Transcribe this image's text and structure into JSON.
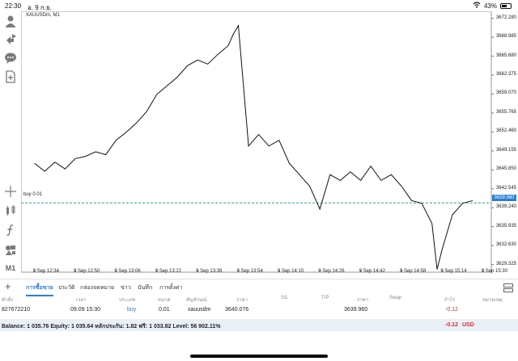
{
  "status": {
    "time": "22:30",
    "date": "อ. 9 ก.ย.",
    "battery": "43%"
  },
  "chart": {
    "symbol": "XAUUSDm, M1",
    "position_label": "buy 0.01",
    "current_price_tag": "3639.960",
    "colors": {
      "line": "#111111",
      "position_line": "#2e9e8f",
      "price_tag": "#2b7ed6"
    },
    "y_ticks": [
      "3672.280",
      "3668.985",
      "3665.680",
      "3662.375",
      "3659.070",
      "3655.765",
      "3652.460",
      "3649.155",
      "3645.850",
      "3642.545",
      "3639.240",
      "3635.935",
      "3632.630",
      "3629.325"
    ],
    "x_ticks": [
      "9 Sep 12:34",
      "9 Sep 12:50",
      "9 Sep 13:06",
      "9 Sep 13:22",
      "9 Sep 13:38",
      "9 Sep 13:54",
      "9 Sep 14:10",
      "9 Sep 14:26",
      "9 Sep 14:42",
      "9 Sep 14:58",
      "9 Sep 15:14",
      "9 Sep 15:30"
    ]
  },
  "chart_data": {
    "type": "line",
    "x": [
      "12:34",
      "12:38",
      "12:42",
      "12:46",
      "12:50",
      "12:54",
      "12:58",
      "13:02",
      "13:06",
      "13:10",
      "13:14",
      "13:18",
      "13:22",
      "13:26",
      "13:30",
      "13:34",
      "13:38",
      "13:42",
      "13:46",
      "13:50",
      "13:52",
      "13:54",
      "13:58",
      "14:02",
      "14:06",
      "14:10",
      "14:14",
      "14:18",
      "14:22",
      "14:26",
      "14:30",
      "14:34",
      "14:38",
      "14:42",
      "14:46",
      "14:50",
      "14:54",
      "14:58",
      "15:02",
      "15:06",
      "15:10",
      "15:12",
      "15:14",
      "15:18",
      "15:22",
      "15:26"
    ],
    "y": [
      3647.0,
      3645.6,
      3647.2,
      3646.0,
      3647.8,
      3648.2,
      3649.0,
      3648.5,
      3651.0,
      3652.4,
      3654.0,
      3656.0,
      3659.0,
      3660.5,
      3662.0,
      3664.0,
      3665.0,
      3664.3,
      3666.0,
      3667.5,
      3669.5,
      3671.0,
      3650.0,
      3652.0,
      3650.0,
      3651.0,
      3647.0,
      3645.0,
      3643.0,
      3639.0,
      3645.0,
      3644.0,
      3645.5,
      3644.0,
      3646.5,
      3644.0,
      3645.0,
      3643.0,
      3640.5,
      3640.0,
      3636.5,
      3628.5,
      3632.0,
      3638.0,
      3640.0,
      3640.5
    ],
    "ylim": [
      3628.0,
      3673.5
    ],
    "grid": false,
    "position_level": 3640.076
  },
  "tabs": [
    "การซื้อขาย",
    "ประวัติ",
    "กล่องจดหมาย",
    "ข่าว",
    "บันทึก",
    "การตั้งค่า"
  ],
  "table": {
    "headers": [
      "คำสั่ง",
      "เวลา",
      "ประเภท",
      "ขนาด",
      "สัญลักษณ์",
      "ราคา",
      "S/L",
      "T/P",
      "ราคา",
      "Swap",
      "กำไร",
      "หมายเหตุ"
    ],
    "row": {
      "order": "827672210",
      "time": "09.09 15:30",
      "type": "buy",
      "size": "0.01",
      "symbol": "xauusdm",
      "price": "3640.076",
      "price_now": "3639.960",
      "profit": "-0.12"
    }
  },
  "balance": {
    "text": "Balance: 1 035.76 Equity: 1 035.64 หลักประกัน: 1.82 ฟรี: 1 033.82 Level: 56 902.11%",
    "profit": "-0.12",
    "currency": "USD"
  }
}
